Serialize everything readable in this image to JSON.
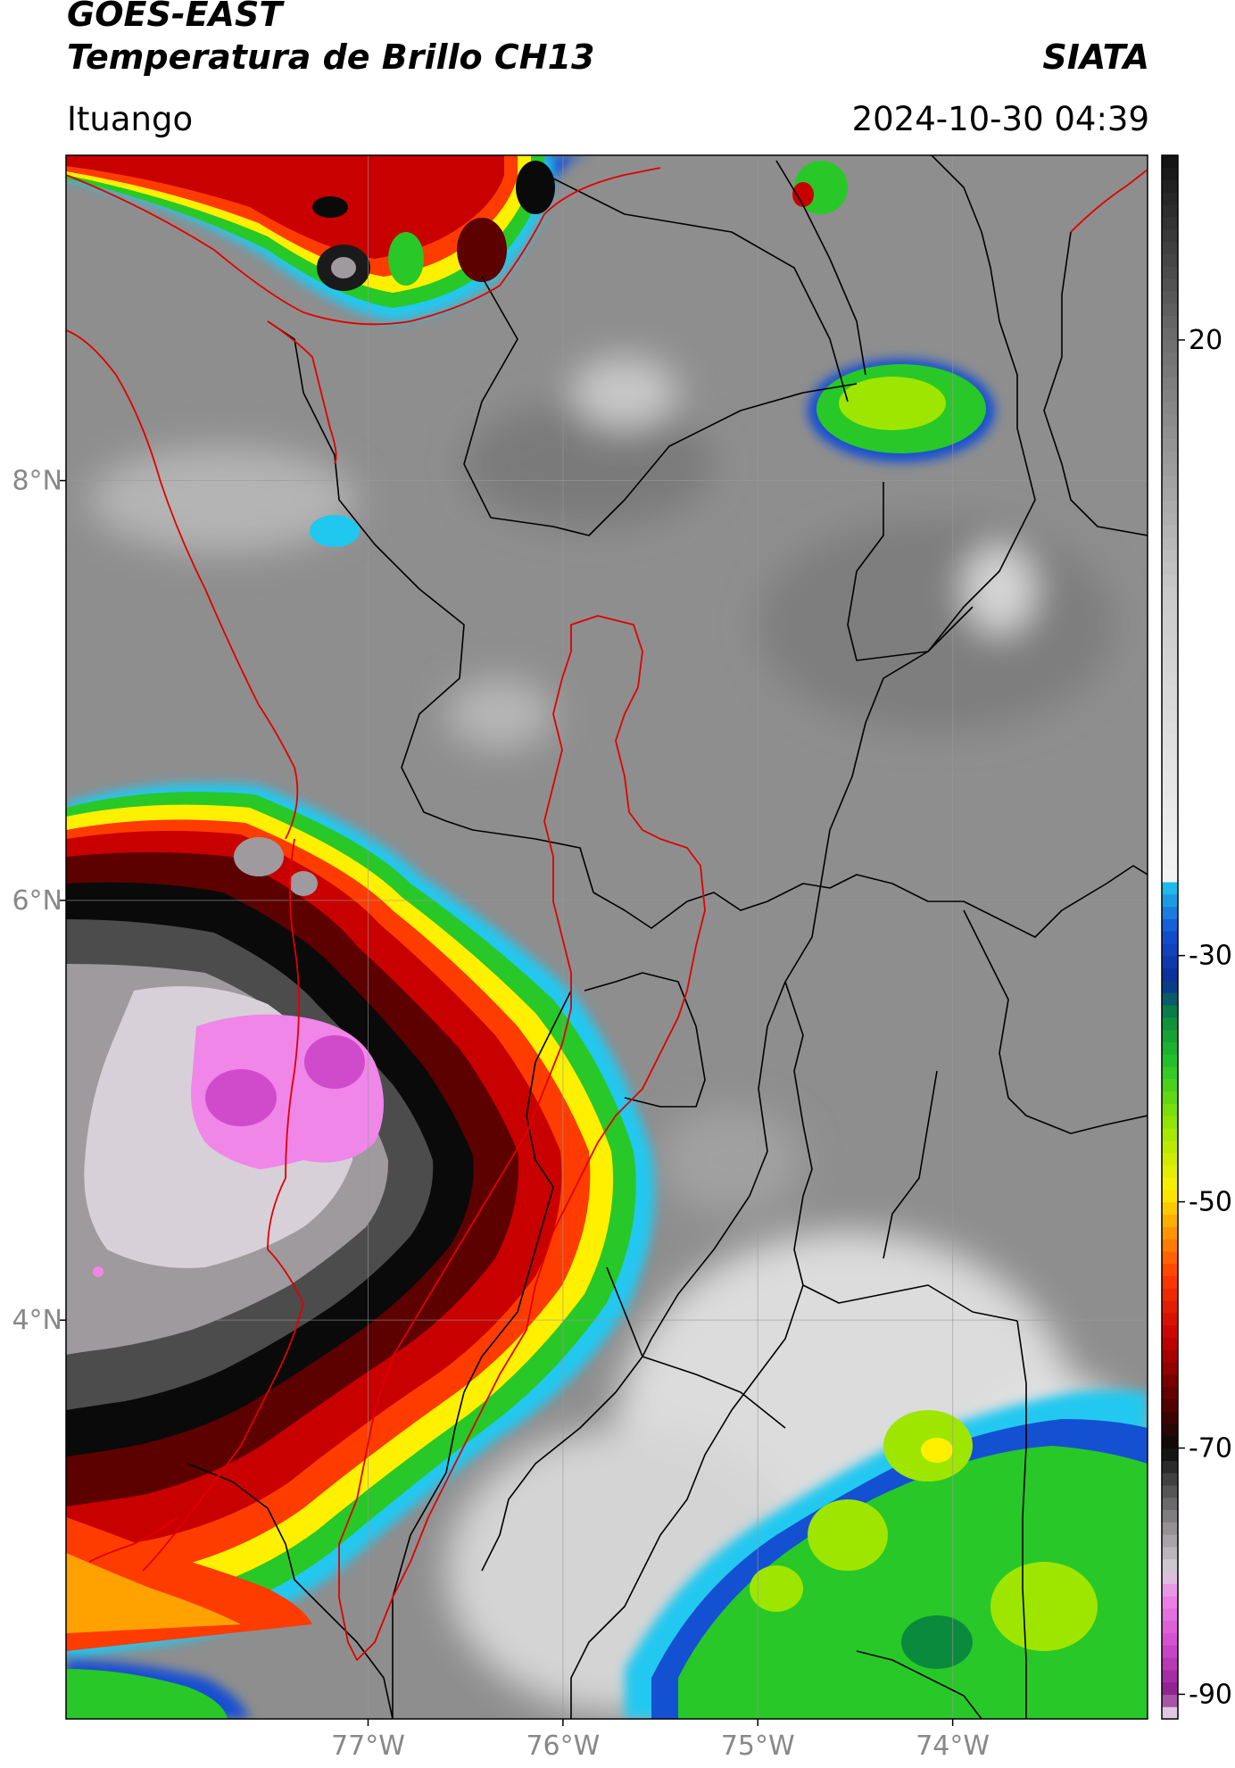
{
  "header": {
    "satellite": "GOES-EAST",
    "product": "Temperatura de Brillo CH13",
    "brand": "SIATA",
    "location": "Ituango",
    "timestamp": "2024-10-30 04:39"
  },
  "map": {
    "lon_range": [
      -78.55,
      -73.0
    ],
    "lat_range": [
      2.1,
      9.55
    ],
    "lon_ticks": [
      {
        "value": -77,
        "label": "77°W"
      },
      {
        "value": -76,
        "label": "76°W"
      },
      {
        "value": -75,
        "label": "75°W"
      },
      {
        "value": -74,
        "label": "74°W"
      }
    ],
    "lat_ticks": [
      {
        "value": 8,
        "label": "8°N"
      },
      {
        "value": 6,
        "label": "6°N"
      },
      {
        "value": 4,
        "label": "4°N"
      }
    ],
    "gridlines": true,
    "colors": {
      "grid": "#9a9a9a",
      "national_border": "#e00000",
      "admin_border": "#000000",
      "highlight_basin": "#e00000"
    }
  },
  "colorbar": {
    "range": [
      -92,
      35
    ],
    "ticks": [
      {
        "value": 20,
        "label": "20"
      },
      {
        "value": -30,
        "label": "-30"
      },
      {
        "value": -50,
        "label": "-50"
      },
      {
        "value": -70,
        "label": "-70"
      },
      {
        "value": -90,
        "label": "-90"
      }
    ],
    "stops": [
      {
        "value": -92,
        "color": "#ffffff"
      },
      {
        "value": -90,
        "color": "#8a1d8a"
      },
      {
        "value": -86,
        "color": "#d04bcc"
      },
      {
        "value": -82,
        "color": "#ef86e8"
      },
      {
        "value": -80,
        "color": "#d8d0d8"
      },
      {
        "value": -77,
        "color": "#9e9a9e"
      },
      {
        "value": -73,
        "color": "#4c4c4c"
      },
      {
        "value": -70,
        "color": "#0a0a0a"
      },
      {
        "value": -66,
        "color": "#5c0000"
      },
      {
        "value": -61,
        "color": "#c80000"
      },
      {
        "value": -56,
        "color": "#ff3c00"
      },
      {
        "value": -52,
        "color": "#ffa200"
      },
      {
        "value": -49,
        "color": "#fff000"
      },
      {
        "value": -44,
        "color": "#9ee600"
      },
      {
        "value": -39,
        "color": "#28c828"
      },
      {
        "value": -35,
        "color": "#0a8a3c"
      },
      {
        "value": -32,
        "color": "#0a2d96"
      },
      {
        "value": -28,
        "color": "#1450d2"
      },
      {
        "value": -24,
        "color": "#20c8f0"
      },
      {
        "value": -23.9,
        "color": "#f4f4f4"
      },
      {
        "value": 0,
        "color": "#c8c8c8"
      },
      {
        "value": 20,
        "color": "#6e6e6e"
      },
      {
        "value": 35,
        "color": "#111111"
      }
    ]
  },
  "icons": {
    "map": "satellite-image"
  }
}
